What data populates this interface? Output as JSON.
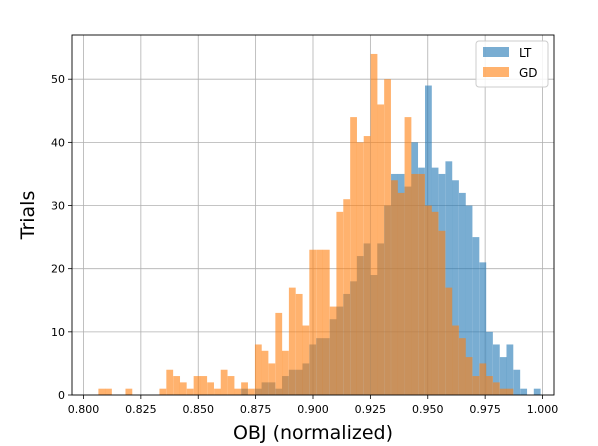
{
  "chart_data": {
    "type": "histogram",
    "xlabel": "OBJ (normalized)",
    "ylabel": "Trials",
    "xlim": [
      0.795,
      1.005
    ],
    "ylim": [
      0,
      57
    ],
    "xticks": [
      0.8,
      0.825,
      0.85,
      0.875,
      0.9,
      0.925,
      0.95,
      0.975,
      1.0
    ],
    "xtick_labels": [
      "0.800",
      "0.825",
      "0.850",
      "0.875",
      "0.900",
      "0.925",
      "0.950",
      "0.975",
      "1.000"
    ],
    "yticks": [
      0,
      10,
      20,
      30,
      40,
      50
    ],
    "ytick_labels": [
      "0",
      "10",
      "20",
      "30",
      "40",
      "50"
    ],
    "grid": true,
    "legend_position": "top-right",
    "bin_width": 0.00296,
    "series": [
      {
        "name": "LT",
        "color": "#1f77b4",
        "opacity": 0.6,
        "bins": [
          [
            0.8687,
            1
          ],
          [
            0.8747,
            1
          ],
          [
            0.8776,
            2
          ],
          [
            0.8806,
            2
          ],
          [
            0.8836,
            1
          ],
          [
            0.8865,
            3
          ],
          [
            0.8895,
            4
          ],
          [
            0.8925,
            4
          ],
          [
            0.8954,
            5
          ],
          [
            0.8984,
            8
          ],
          [
            0.9014,
            9
          ],
          [
            0.9043,
            9
          ],
          [
            0.9073,
            12
          ],
          [
            0.9102,
            14
          ],
          [
            0.9132,
            16
          ],
          [
            0.9162,
            18
          ],
          [
            0.9191,
            22
          ],
          [
            0.9221,
            24
          ],
          [
            0.9251,
            19
          ],
          [
            0.928,
            24
          ],
          [
            0.931,
            30
          ],
          [
            0.934,
            35
          ],
          [
            0.9369,
            35
          ],
          [
            0.9399,
            33
          ],
          [
            0.9428,
            40
          ],
          [
            0.9458,
            36
          ],
          [
            0.9488,
            49
          ],
          [
            0.9517,
            36
          ],
          [
            0.9547,
            35
          ],
          [
            0.9577,
            37
          ],
          [
            0.9606,
            34
          ],
          [
            0.9636,
            32
          ],
          [
            0.9665,
            30
          ],
          [
            0.9695,
            25
          ],
          [
            0.9725,
            21
          ],
          [
            0.9754,
            10
          ],
          [
            0.9784,
            8
          ],
          [
            0.9814,
            6
          ],
          [
            0.9843,
            8
          ],
          [
            0.9873,
            4
          ],
          [
            0.9903,
            1
          ],
          [
            0.9962,
            1
          ]
        ]
      },
      {
        "name": "GD",
        "color": "#ff7f0e",
        "opacity": 0.6,
        "bins": [
          [
            0.8065,
            1
          ],
          [
            0.8094,
            1
          ],
          [
            0.8183,
            1
          ],
          [
            0.8331,
            1
          ],
          [
            0.8361,
            4
          ],
          [
            0.8391,
            3
          ],
          [
            0.842,
            2
          ],
          [
            0.845,
            1
          ],
          [
            0.848,
            3
          ],
          [
            0.8509,
            3
          ],
          [
            0.8539,
            2
          ],
          [
            0.8569,
            1
          ],
          [
            0.8598,
            4
          ],
          [
            0.8628,
            3
          ],
          [
            0.8657,
            1
          ],
          [
            0.8687,
            2
          ],
          [
            0.8717,
            1
          ],
          [
            0.8747,
            8
          ],
          [
            0.8776,
            7
          ],
          [
            0.8806,
            5
          ],
          [
            0.8836,
            13
          ],
          [
            0.8865,
            7
          ],
          [
            0.8895,
            17
          ],
          [
            0.8925,
            16
          ],
          [
            0.8954,
            11
          ],
          [
            0.8984,
            23
          ],
          [
            0.9014,
            23
          ],
          [
            0.9043,
            23
          ],
          [
            0.9073,
            14
          ],
          [
            0.9102,
            29
          ],
          [
            0.9132,
            31
          ],
          [
            0.9162,
            44
          ],
          [
            0.9191,
            40
          ],
          [
            0.9221,
            41
          ],
          [
            0.9251,
            54
          ],
          [
            0.928,
            46
          ],
          [
            0.931,
            50
          ],
          [
            0.934,
            34
          ],
          [
            0.9369,
            32
          ],
          [
            0.9399,
            44
          ],
          [
            0.9428,
            35
          ],
          [
            0.9458,
            35
          ],
          [
            0.9488,
            30
          ],
          [
            0.9517,
            29
          ],
          [
            0.9547,
            26
          ],
          [
            0.9577,
            17
          ],
          [
            0.9606,
            11
          ],
          [
            0.9636,
            9
          ],
          [
            0.9665,
            6
          ],
          [
            0.9695,
            3
          ],
          [
            0.9725,
            5
          ],
          [
            0.9754,
            3
          ],
          [
            0.9784,
            2
          ],
          [
            0.9814,
            1
          ],
          [
            0.9843,
            1
          ]
        ]
      }
    ]
  }
}
